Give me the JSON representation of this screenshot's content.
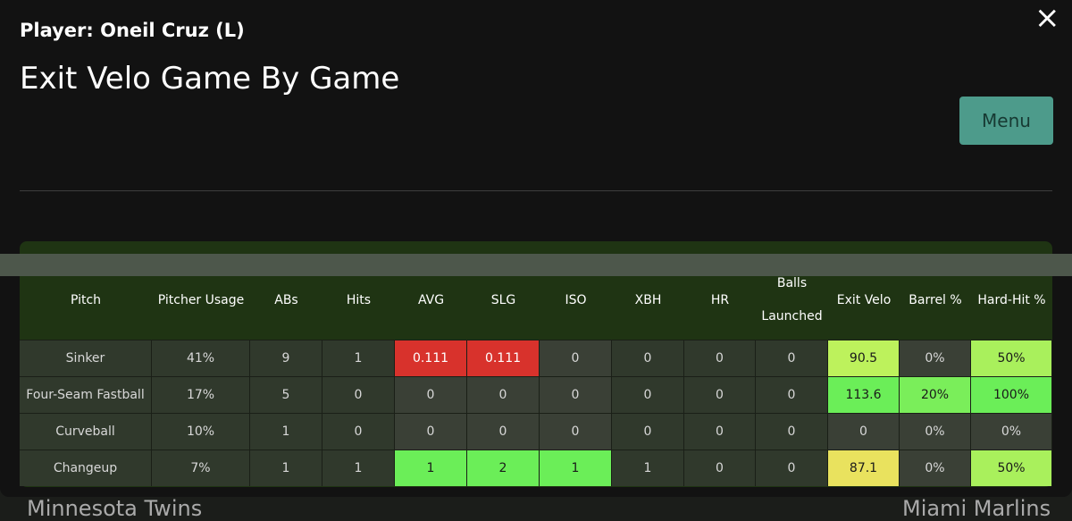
{
  "background_teams": [
    "Minnesota Twins",
    "Miami Marlins"
  ],
  "modal": {
    "close": "×",
    "player": "Player: Oneil Cruz (L)",
    "title": "Exit Velo Game By Game",
    "menu": "Menu"
  },
  "table": {
    "columns": [
      "Pitch",
      "Pitcher Usage",
      "ABs",
      "Hits",
      "AVG",
      "SLG",
      "ISO",
      "XBH",
      "HR",
      "Balls Launched",
      "Exit Velo",
      "Barrel %",
      "Hard-Hit %"
    ],
    "rows": [
      [
        "Sinker",
        "41%",
        "9",
        "1",
        "0.111",
        "0.111",
        "0",
        "0",
        "0",
        "0",
        "90.5",
        "0%",
        "50%"
      ],
      [
        "Four-Seam Fastball",
        "17%",
        "5",
        "0",
        "0",
        "0",
        "0",
        "0",
        "0",
        "0",
        "113.6",
        "20%",
        "100%"
      ],
      [
        "Curveball",
        "10%",
        "1",
        "0",
        "0",
        "0",
        "0",
        "0",
        "0",
        "0",
        "0",
        "0%",
        "0%"
      ],
      [
        "Changeup",
        "7%",
        "1",
        "1",
        "1",
        "2",
        "1",
        "1",
        "0",
        "0",
        "87.1",
        "0%",
        "50%"
      ]
    ],
    "cell_colors": [
      [
        null,
        null,
        null,
        null,
        "#d8322c",
        "#d8322c",
        "#3a4036",
        null,
        null,
        null,
        "#bdf25c",
        "#3a4036",
        "#a9f05c"
      ],
      [
        null,
        null,
        null,
        null,
        "#3a4036",
        "#3a4036",
        "#3a4036",
        null,
        null,
        null,
        "#6bee58",
        "#7aee5a",
        "#6bee58"
      ],
      [
        null,
        null,
        null,
        null,
        "#3a4036",
        "#3a4036",
        "#3a4036",
        null,
        null,
        null,
        "#3a4036",
        "#3a4036",
        "#3a4036"
      ],
      [
        null,
        null,
        null,
        null,
        "#6bee58",
        "#6bee58",
        "#6bee58",
        null,
        null,
        null,
        "#e9e25e",
        "#3a4036",
        "#a9f05c"
      ]
    ]
  }
}
